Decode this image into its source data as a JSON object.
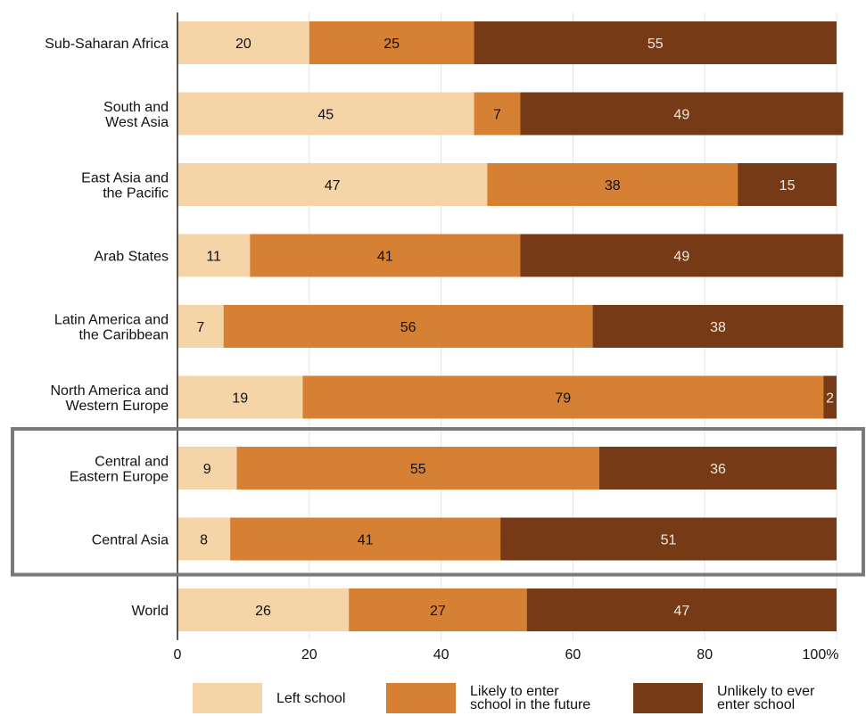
{
  "chart_data": {
    "type": "bar",
    "orientation": "horizontal",
    "stacked": true,
    "categories": [
      "Sub-Saharan Africa",
      "South and\nWest Asia",
      "East Asia and\nthe Pacific",
      "Arab States",
      "Latin America and\nthe Caribbean",
      "North America and\nWestern Europe",
      "Central and\nEastern Europe",
      "Central Asia",
      "World"
    ],
    "series": [
      {
        "name": "Left school",
        "color": "#f5d5a8",
        "values": [
          20,
          45,
          47,
          11,
          7,
          19,
          9,
          8,
          26
        ]
      },
      {
        "name": "Likely to enter\nschool in the future",
        "color": "#d58033",
        "values": [
          25,
          7,
          38,
          41,
          56,
          79,
          55,
          41,
          27
        ]
      },
      {
        "name": "Unlikely to ever\nenter school",
        "color": "#763b16",
        "values": [
          55,
          49,
          15,
          49,
          38,
          2,
          36,
          51,
          47
        ]
      }
    ],
    "xlim": [
      0,
      100
    ],
    "xticks": [
      "0",
      "20",
      "40",
      "60",
      "80",
      "100%"
    ],
    "grid": true,
    "highlight": {
      "categories": [
        "Central and\nEastern Europe",
        "Central Asia"
      ],
      "color": "#7a7a7a"
    },
    "legend_position": "bottom"
  }
}
